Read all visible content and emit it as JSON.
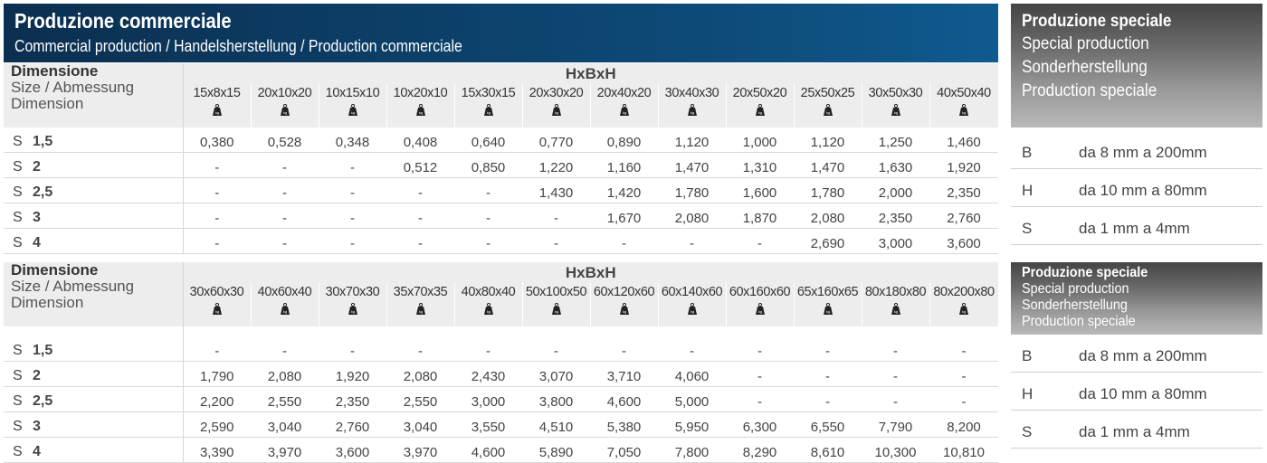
{
  "header": {
    "title": "Produzione commerciale",
    "subtitle": "Commercial production / Handelsherstellung / Production commerciale"
  },
  "dim_header": {
    "line1": "Dimensione",
    "line2": "Size / Abmessung",
    "line3": "Dimension"
  },
  "hxbxh_label": "HxBxH",
  "weight_icon": "kg-weight-icon",
  "weight_icon_text": "kg",
  "table1": {
    "sizes": [
      "15x8x15",
      "20x10x20",
      "10x15x10",
      "10x20x10",
      "15x30x15",
      "20x30x20",
      "20x40x20",
      "30x40x30",
      "20x50x20",
      "25x50x25",
      "30x50x30",
      "40x50x40"
    ],
    "rows": [
      {
        "s": "S",
        "t": "1,5",
        "values": [
          "0,380",
          "0,528",
          "0,348",
          "0,408",
          "0,640",
          "0,770",
          "0,890",
          "1,120",
          "1,000",
          "1,120",
          "1,250",
          "1,460"
        ]
      },
      {
        "s": "S",
        "t": "2",
        "values": [
          "-",
          "-",
          "-",
          "0,512",
          "0,850",
          "1,220",
          "1,160",
          "1,470",
          "1,310",
          "1,470",
          "1,630",
          "1,920"
        ]
      },
      {
        "s": "S",
        "t": "2,5",
        "values": [
          "-",
          "-",
          "-",
          "-",
          "-",
          "1,430",
          "1,420",
          "1,780",
          "1,600",
          "1,780",
          "2,000",
          "2,350"
        ]
      },
      {
        "s": "S",
        "t": "3",
        "values": [
          "-",
          "-",
          "-",
          "-",
          "-",
          "-",
          "1,670",
          "2,080",
          "1,870",
          "2,080",
          "2,350",
          "2,760"
        ]
      },
      {
        "s": "S",
        "t": "4",
        "values": [
          "-",
          "-",
          "-",
          "-",
          "-",
          "-",
          "-",
          "-",
          "-",
          "2,690",
          "3,000",
          "3,600"
        ]
      }
    ]
  },
  "table2": {
    "sizes": [
      "30x60x30",
      "40x60x40",
      "30x70x30",
      "35x70x35",
      "40x80x40",
      "50x100x50",
      "60x120x60",
      "60x140x60",
      "60x160x60",
      "65x160x65",
      "80x180x80",
      "80x200x80"
    ],
    "rows": [
      {
        "s": "S",
        "t": "1,5",
        "values": [
          "-",
          "-",
          "-",
          "-",
          "-",
          "-",
          "-",
          "-",
          "-",
          "-",
          "-",
          "-"
        ]
      },
      {
        "s": "S",
        "t": "2",
        "values": [
          "1,790",
          "2,080",
          "1,920",
          "2,080",
          "2,430",
          "3,070",
          "3,710",
          "4,060",
          "-",
          "-",
          "-",
          "-"
        ]
      },
      {
        "s": "S",
        "t": "2,5",
        "values": [
          "2,200",
          "2,550",
          "2,350",
          "2,550",
          "3,000",
          "3,800",
          "4,600",
          "5,000",
          "-",
          "-",
          "-",
          "-"
        ]
      },
      {
        "s": "S",
        "t": "3",
        "values": [
          "2,590",
          "3,040",
          "2,760",
          "3,040",
          "3,550",
          "4,510",
          "5,380",
          "5,950",
          "6,300",
          "6,550",
          "7,790",
          "8,200"
        ]
      },
      {
        "s": "S",
        "t": "4",
        "values": [
          "3,390",
          "3,970",
          "3,600",
          "3,970",
          "4,600",
          "5,890",
          "7,050",
          "7,800",
          "8,290",
          "8,610",
          "10,300",
          "10,810"
        ]
      }
    ]
  },
  "special": {
    "title": "Produzione speciale",
    "lines": [
      "Special production",
      "Sonderherstellung",
      "Production speciale"
    ],
    "specs": [
      {
        "k": "B",
        "v": "da 8 mm a 200mm"
      },
      {
        "k": "H",
        "v": "da 10 mm a 80mm"
      },
      {
        "k": "S",
        "v": "da 1 mm a 4mm"
      }
    ]
  },
  "colors": {
    "header_bg": "#0d4a78",
    "row_header_bg": "#ededed",
    "side_box_dark": "#444444",
    "side_box_light": "#b9b9b9"
  }
}
